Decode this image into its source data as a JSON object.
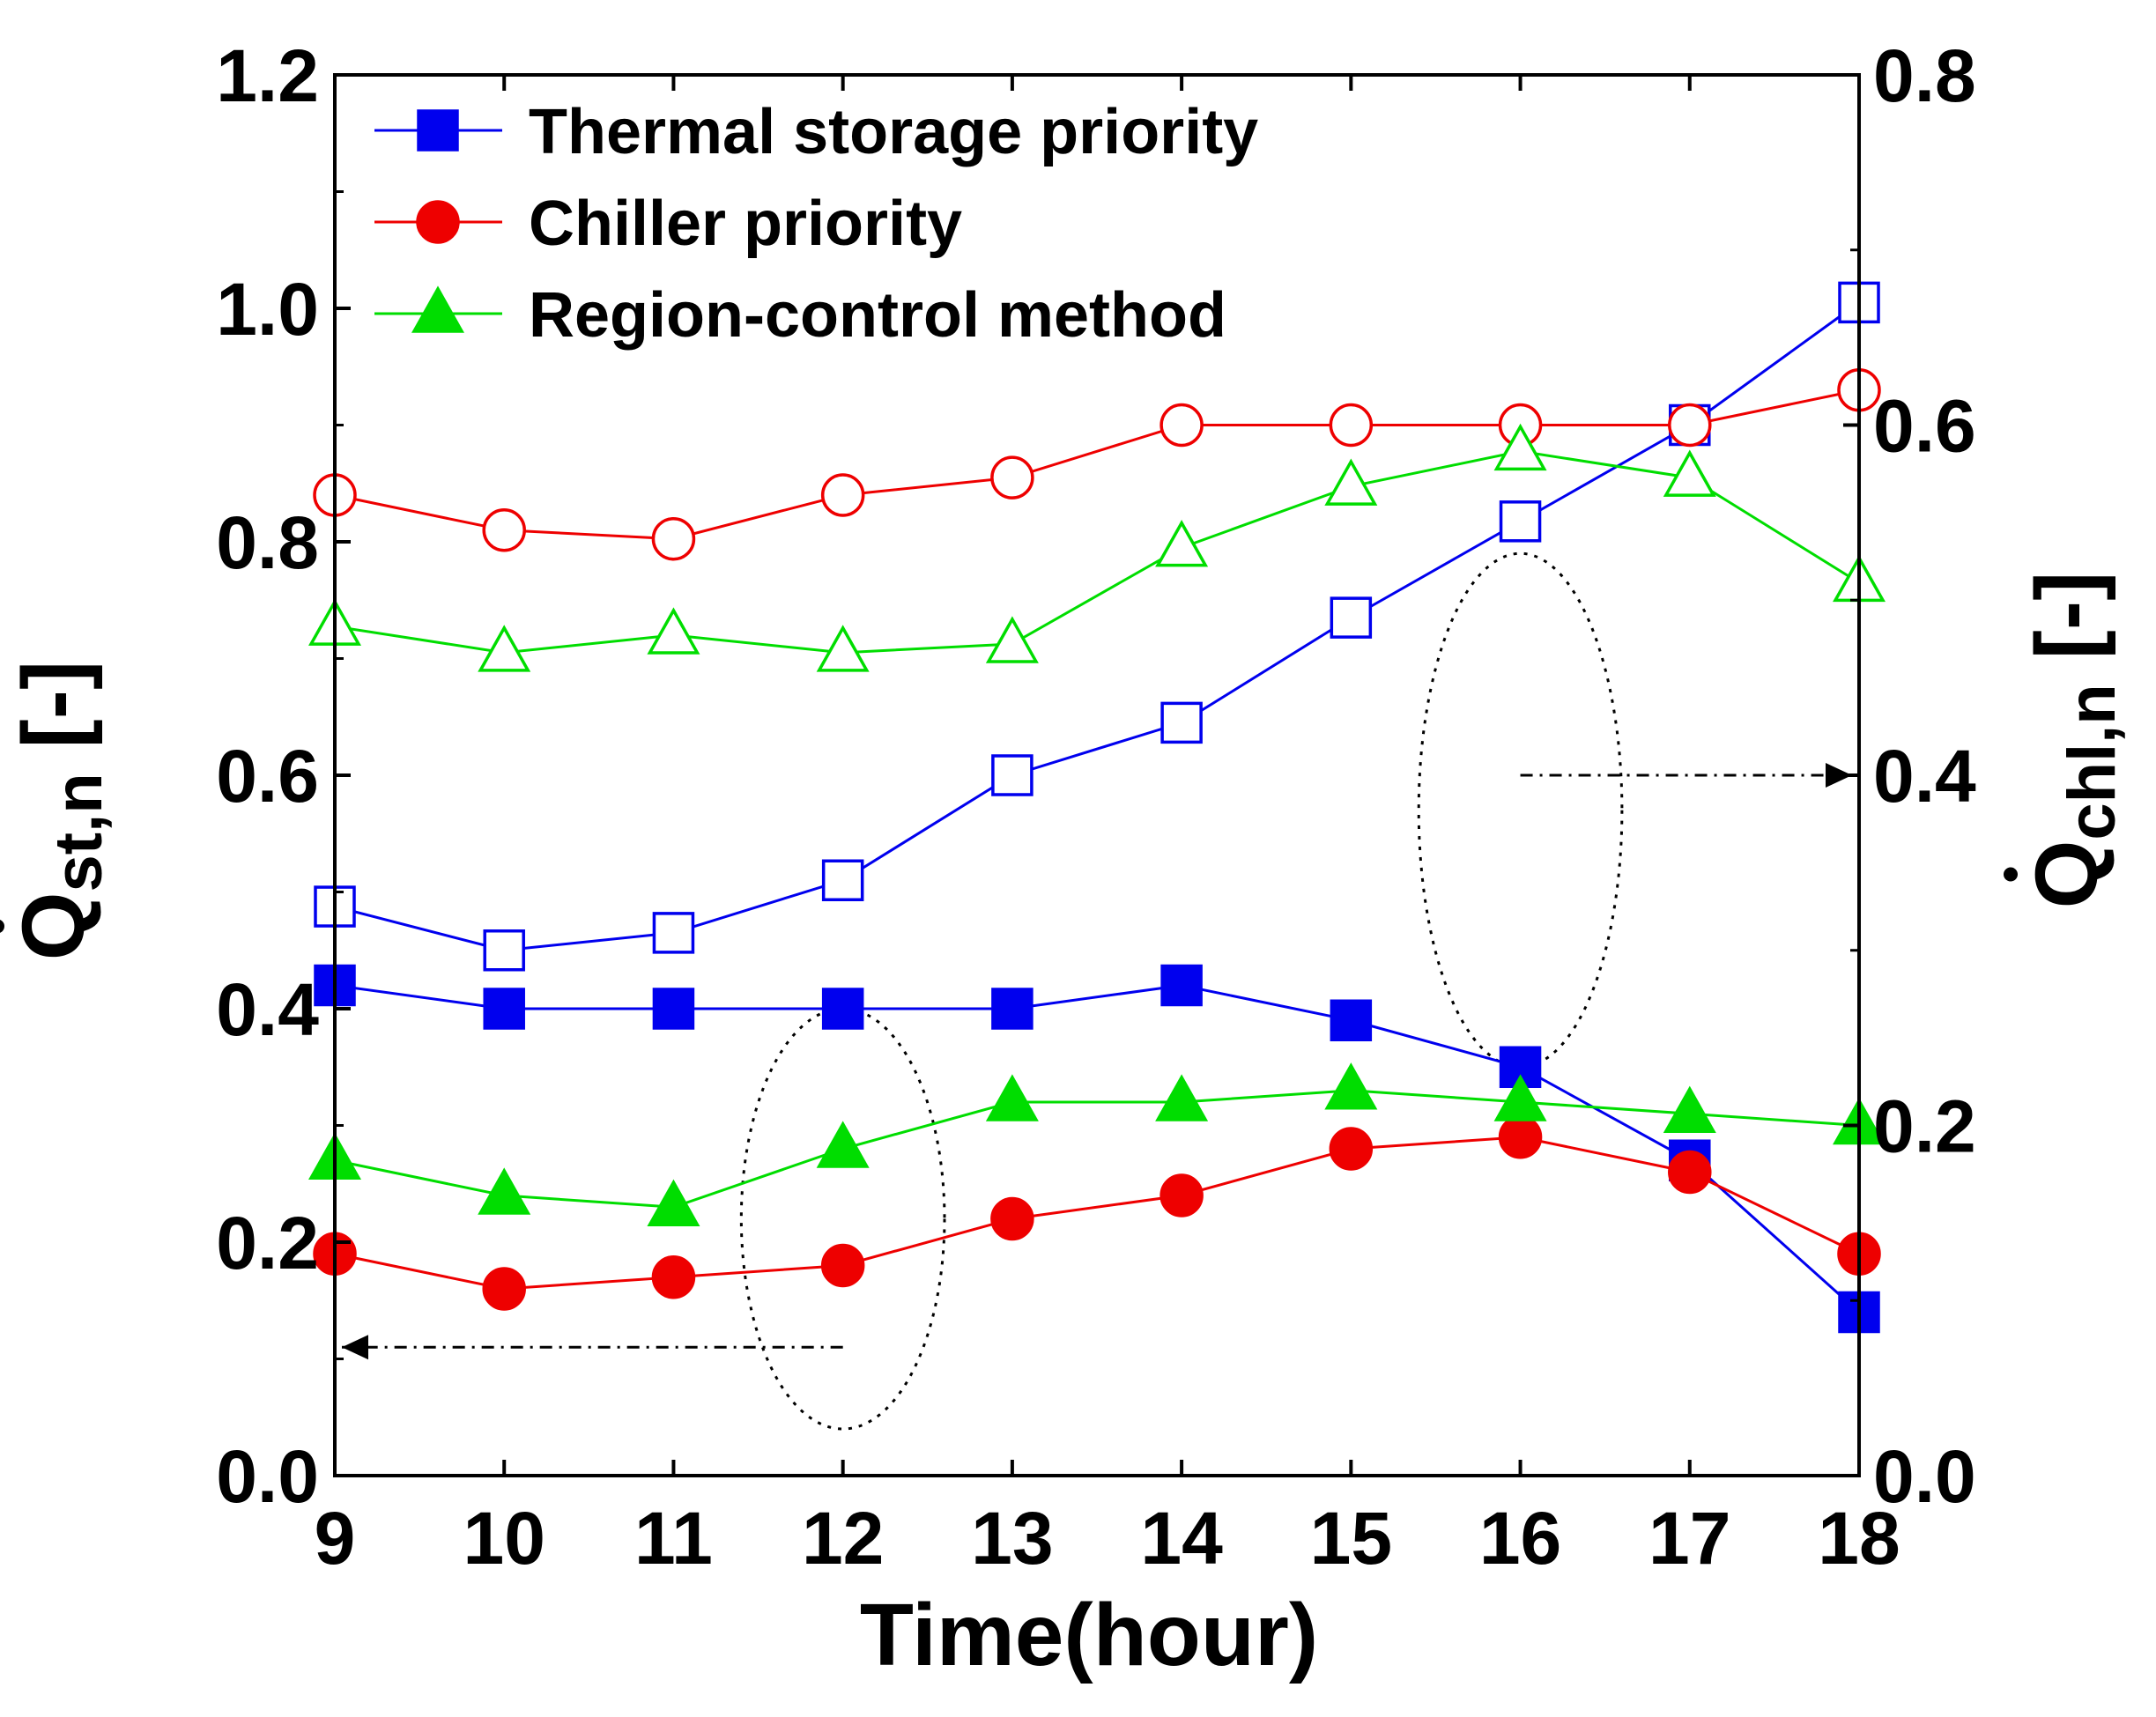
{
  "chart_data": {
    "type": "line",
    "xlabel": "Time(hour)",
    "ylabel_left": {
      "main": "Q",
      "sub": "st,n",
      "unit": " [-]"
    },
    "ylabel_right": {
      "main": "Q",
      "sub": "chl,n",
      "unit": " [-]"
    },
    "x": [
      9,
      10,
      11,
      12,
      13,
      14,
      15,
      16,
      17,
      18
    ],
    "x_ticks": [
      "9",
      "10",
      "11",
      "12",
      "13",
      "14",
      "15",
      "16",
      "17",
      "18"
    ],
    "xlim": [
      9,
      18
    ],
    "ylim_left": [
      0.0,
      1.2
    ],
    "ylim_right": [
      0.0,
      0.8
    ],
    "y_ticks_left": [
      "0.0",
      "0.2",
      "0.4",
      "0.6",
      "0.8",
      "1.0",
      "1.2"
    ],
    "y_ticks_right": [
      "0.0",
      "0.2",
      "0.4",
      "0.6",
      "0.8"
    ],
    "legend": [
      {
        "name": "Thermal storage priority",
        "color": "#0000ee",
        "marker": "square"
      },
      {
        "name": "Chiller priority",
        "color": "#ee0000",
        "marker": "circle"
      },
      {
        "name": "Region-control method",
        "color": "#00dd00",
        "marker": "triangle"
      }
    ],
    "series": [
      {
        "name": "Thermal storage priority",
        "axis": "left",
        "filled": true,
        "color": "#0000ee",
        "marker": "square",
        "values": [
          0.42,
          0.4,
          0.4,
          0.4,
          0.4,
          0.42,
          0.39,
          0.35,
          0.27,
          0.14
        ]
      },
      {
        "name": "Chiller priority",
        "axis": "left",
        "filled": true,
        "color": "#ee0000",
        "marker": "circle",
        "values": [
          0.19,
          0.16,
          0.17,
          0.18,
          0.22,
          0.24,
          0.28,
          0.29,
          0.26,
          0.19
        ]
      },
      {
        "name": "Region-control method",
        "axis": "left",
        "filled": true,
        "color": "#00dd00",
        "marker": "triangle",
        "values": [
          0.27,
          0.24,
          0.23,
          0.28,
          0.32,
          0.32,
          0.33,
          0.32,
          0.31,
          0.3
        ]
      },
      {
        "name": "Thermal storage priority",
        "axis": "right",
        "filled": false,
        "color": "#0000ee",
        "marker": "square",
        "values": [
          0.325,
          0.3,
          0.31,
          0.34,
          0.4,
          0.43,
          0.49,
          0.545,
          0.6,
          0.67
        ]
      },
      {
        "name": "Chiller priority",
        "axis": "right",
        "filled": false,
        "color": "#ee0000",
        "marker": "circle",
        "values": [
          0.56,
          0.54,
          0.535,
          0.56,
          0.57,
          0.6,
          0.6,
          0.6,
          0.6,
          0.62
        ]
      },
      {
        "name": "Region-control method",
        "axis": "right",
        "filled": false,
        "color": "#00dd00",
        "marker": "triangle",
        "values": [
          0.485,
          0.47,
          0.48,
          0.47,
          0.475,
          0.53,
          0.565,
          0.585,
          0.57,
          0.51
        ]
      }
    ],
    "annotations": [
      {
        "type": "ellipse",
        "center": [
          12,
          0.22
        ],
        "radii": [
          0.6,
          0.18
        ],
        "arrow_to": "left-axis",
        "arrow_y": 0.11
      },
      {
        "type": "ellipse",
        "center": [
          16,
          0.57
        ],
        "radii": [
          0.6,
          0.22
        ],
        "arrow_to": "right-axis",
        "arrow_y": 0.4
      }
    ]
  }
}
